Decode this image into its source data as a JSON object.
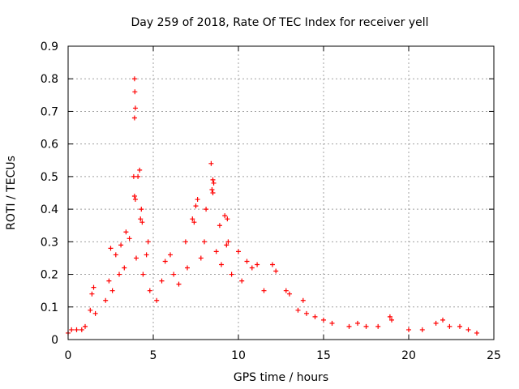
{
  "chart_data": {
    "type": "scatter",
    "title": "Day 259 of 2018, Rate Of TEC Index for receiver yell",
    "xlabel": "GPS time / hours",
    "ylabel": "ROTI / TECUs",
    "xlim": [
      0,
      25
    ],
    "ylim": [
      0,
      0.9
    ],
    "x_ticks": [
      0,
      5,
      10,
      15,
      20,
      25
    ],
    "x_tick_labels": [
      "0",
      "5",
      "10",
      "15",
      "20",
      "25"
    ],
    "y_ticks": [
      0,
      0.1,
      0.2,
      0.3,
      0.4,
      0.5,
      0.6,
      0.7,
      0.8,
      0.9
    ],
    "y_tick_labels": [
      "0",
      "0.1",
      "0.2",
      "0.3",
      "0.4",
      "0.5",
      "0.6",
      "0.7",
      "0.8",
      "0.9"
    ],
    "grid": true,
    "marker": "+",
    "series": [
      {
        "name": "ROTI",
        "color": "#ff0000",
        "points": [
          [
            3.9,
            0.8
          ],
          [
            3.92,
            0.76
          ],
          [
            3.95,
            0.71
          ],
          [
            3.9,
            0.68
          ],
          [
            4.2,
            0.52
          ],
          [
            4.1,
            0.5
          ],
          [
            3.85,
            0.5
          ],
          [
            3.9,
            0.44
          ],
          [
            3.95,
            0.43
          ],
          [
            4.3,
            0.4
          ],
          [
            4.25,
            0.37
          ],
          [
            4.35,
            0.36
          ],
          [
            8.4,
            0.54
          ],
          [
            8.5,
            0.49
          ],
          [
            8.55,
            0.48
          ],
          [
            8.45,
            0.46
          ],
          [
            8.5,
            0.45
          ],
          [
            7.6,
            0.43
          ],
          [
            7.5,
            0.41
          ],
          [
            7.3,
            0.37
          ],
          [
            7.4,
            0.36
          ],
          [
            9.2,
            0.38
          ],
          [
            9.35,
            0.37
          ],
          [
            9.4,
            0.3
          ],
          [
            9.3,
            0.29
          ],
          [
            8.9,
            0.35
          ],
          [
            8.1,
            0.4
          ],
          [
            3.4,
            0.33
          ],
          [
            3.6,
            0.31
          ],
          [
            3.1,
            0.29
          ],
          [
            2.5,
            0.28
          ],
          [
            2.8,
            0.26
          ],
          [
            4.7,
            0.3
          ],
          [
            4.6,
            0.26
          ],
          [
            6.9,
            0.3
          ],
          [
            6.0,
            0.26
          ],
          [
            5.7,
            0.24
          ],
          [
            10.0,
            0.27
          ],
          [
            10.5,
            0.24
          ],
          [
            10.8,
            0.22
          ],
          [
            11.1,
            0.23
          ],
          [
            12.0,
            0.23
          ],
          [
            12.2,
            0.21
          ],
          [
            12.8,
            0.15
          ],
          [
            13.0,
            0.14
          ],
          [
            13.8,
            0.12
          ],
          [
            1.5,
            0.16
          ],
          [
            1.4,
            0.14
          ],
          [
            1.3,
            0.09
          ],
          [
            1.6,
            0.08
          ],
          [
            2.2,
            0.12
          ],
          [
            2.4,
            0.18
          ],
          [
            2.6,
            0.15
          ],
          [
            3.0,
            0.2
          ],
          [
            3.3,
            0.22
          ],
          [
            4.0,
            0.25
          ],
          [
            4.4,
            0.2
          ],
          [
            4.8,
            0.15
          ],
          [
            5.2,
            0.12
          ],
          [
            5.5,
            0.18
          ],
          [
            6.2,
            0.2
          ],
          [
            6.5,
            0.17
          ],
          [
            7.0,
            0.22
          ],
          [
            7.8,
            0.25
          ],
          [
            8.0,
            0.3
          ],
          [
            8.7,
            0.27
          ],
          [
            9.0,
            0.23
          ],
          [
            9.6,
            0.2
          ],
          [
            10.2,
            0.18
          ],
          [
            11.5,
            0.15
          ],
          [
            13.5,
            0.09
          ],
          [
            14.0,
            0.08
          ],
          [
            14.5,
            0.07
          ],
          [
            15.0,
            0.06
          ],
          [
            15.5,
            0.05
          ],
          [
            16.5,
            0.04
          ],
          [
            17.0,
            0.05
          ],
          [
            17.5,
            0.04
          ],
          [
            18.2,
            0.04
          ],
          [
            18.9,
            0.07
          ],
          [
            19.0,
            0.06
          ],
          [
            20.0,
            0.03
          ],
          [
            20.8,
            0.03
          ],
          [
            21.6,
            0.05
          ],
          [
            22.0,
            0.06
          ],
          [
            22.4,
            0.04
          ],
          [
            23.0,
            0.04
          ],
          [
            23.5,
            0.03
          ],
          [
            24.0,
            0.02
          ],
          [
            0.2,
            0.03
          ],
          [
            0.5,
            0.03
          ],
          [
            0.8,
            0.03
          ],
          [
            1.0,
            0.04
          ],
          [
            0.0,
            0.02
          ]
        ]
      }
    ]
  }
}
